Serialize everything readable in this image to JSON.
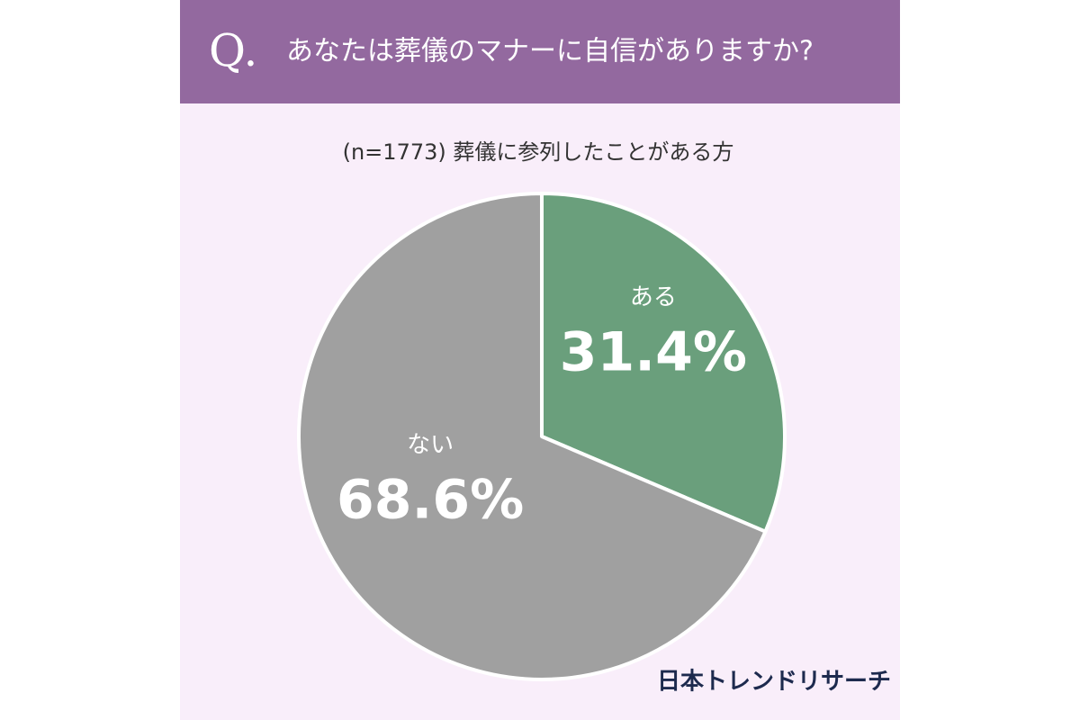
{
  "chart_data": {
    "type": "pie",
    "title_prefix": "Q.",
    "title": "あなたは葬儀のマナーに自信がありますか?",
    "subtitle": "(n=1773) 葬儀に参列したことがある方",
    "categories": [
      "ある",
      "ない"
    ],
    "values": [
      31.4,
      68.6
    ],
    "value_labels": [
      "31.4%",
      "68.6%"
    ],
    "colors": [
      "#6a9f7c",
      "#a0a0a0"
    ],
    "source": "日本トレンドリサーチ"
  }
}
